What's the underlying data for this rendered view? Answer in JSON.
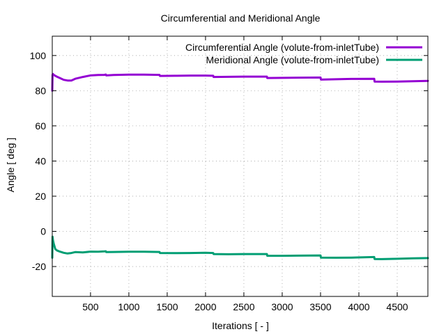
{
  "chart_data": {
    "type": "line",
    "title": "Circumferential and Meridional Angle",
    "xlabel": "Iterations [ - ]",
    "ylabel": "Angle [ deg ]",
    "xlim": [
      1,
      4900
    ],
    "ylim": [
      -37,
      111
    ],
    "xticks": [
      500,
      1000,
      1500,
      2000,
      2500,
      3000,
      3500,
      4000,
      4500
    ],
    "xtick_labels": [
      "500",
      "1000",
      "1500",
      "2000",
      "2500",
      "3000",
      "3500",
      "4000",
      "4500"
    ],
    "yticks": [
      -20,
      0,
      20,
      40,
      60,
      80,
      100
    ],
    "ytick_labels": [
      "-20",
      "0",
      "20",
      "40",
      "60",
      "80",
      "100"
    ],
    "grid": true,
    "legend_position": "top-right",
    "series": [
      {
        "name": "Circumferential Angle (volute-from-inletTube)",
        "color": "#9400d3",
        "x": [
          1,
          5,
          10,
          20,
          40,
          60,
          100,
          150,
          200,
          250,
          300,
          400,
          500,
          600,
          680,
          700,
          705,
          800,
          1000,
          1200,
          1400,
          1405,
          1600,
          1800,
          2000,
          2100,
          2105,
          2300,
          2500,
          2800,
          2805,
          3000,
          3200,
          3500,
          3505,
          3700,
          3900,
          4200,
          4205,
          4300,
          4500,
          4700,
          4900
        ],
        "y": [
          80,
          89,
          89.5,
          89,
          88.5,
          88,
          87.2,
          86.2,
          85.8,
          85.8,
          86.8,
          87.8,
          88.7,
          88.9,
          89.0,
          89.2,
          88.7,
          88.9,
          89.1,
          89.1,
          89.0,
          88.4,
          88.5,
          88.6,
          88.6,
          88.5,
          87.8,
          87.9,
          88.0,
          88.0,
          87.2,
          87.3,
          87.4,
          87.5,
          86.3,
          86.5,
          86.7,
          86.8,
          85.2,
          85.1,
          85.2,
          85.4,
          85.6
        ]
      },
      {
        "name": "Meridional Angle (volute-from-inletTube)",
        "color": "#009e73",
        "x": [
          1,
          5,
          10,
          20,
          40,
          60,
          100,
          150,
          200,
          250,
          300,
          400,
          500,
          600,
          680,
          700,
          705,
          800,
          1000,
          1200,
          1400,
          1405,
          1600,
          1800,
          2000,
          2100,
          2105,
          2300,
          2500,
          2800,
          2805,
          3000,
          3200,
          3500,
          3505,
          3700,
          3900,
          4200,
          4205,
          4300,
          4500,
          4700,
          4900
        ],
        "y": [
          -15,
          -3,
          -5,
          -7,
          -10,
          -10.8,
          -11.5,
          -12.2,
          -12.6,
          -12.3,
          -11.8,
          -12.0,
          -11.5,
          -11.6,
          -11.4,
          -11.3,
          -11.8,
          -11.7,
          -11.6,
          -11.6,
          -11.7,
          -12.3,
          -12.4,
          -12.3,
          -12.2,
          -12.3,
          -12.9,
          -13.0,
          -12.9,
          -12.9,
          -13.9,
          -13.9,
          -13.8,
          -13.7,
          -14.9,
          -15.0,
          -14.9,
          -14.6,
          -15.7,
          -15.8,
          -15.6,
          -15.3,
          -15.2
        ]
      }
    ]
  }
}
